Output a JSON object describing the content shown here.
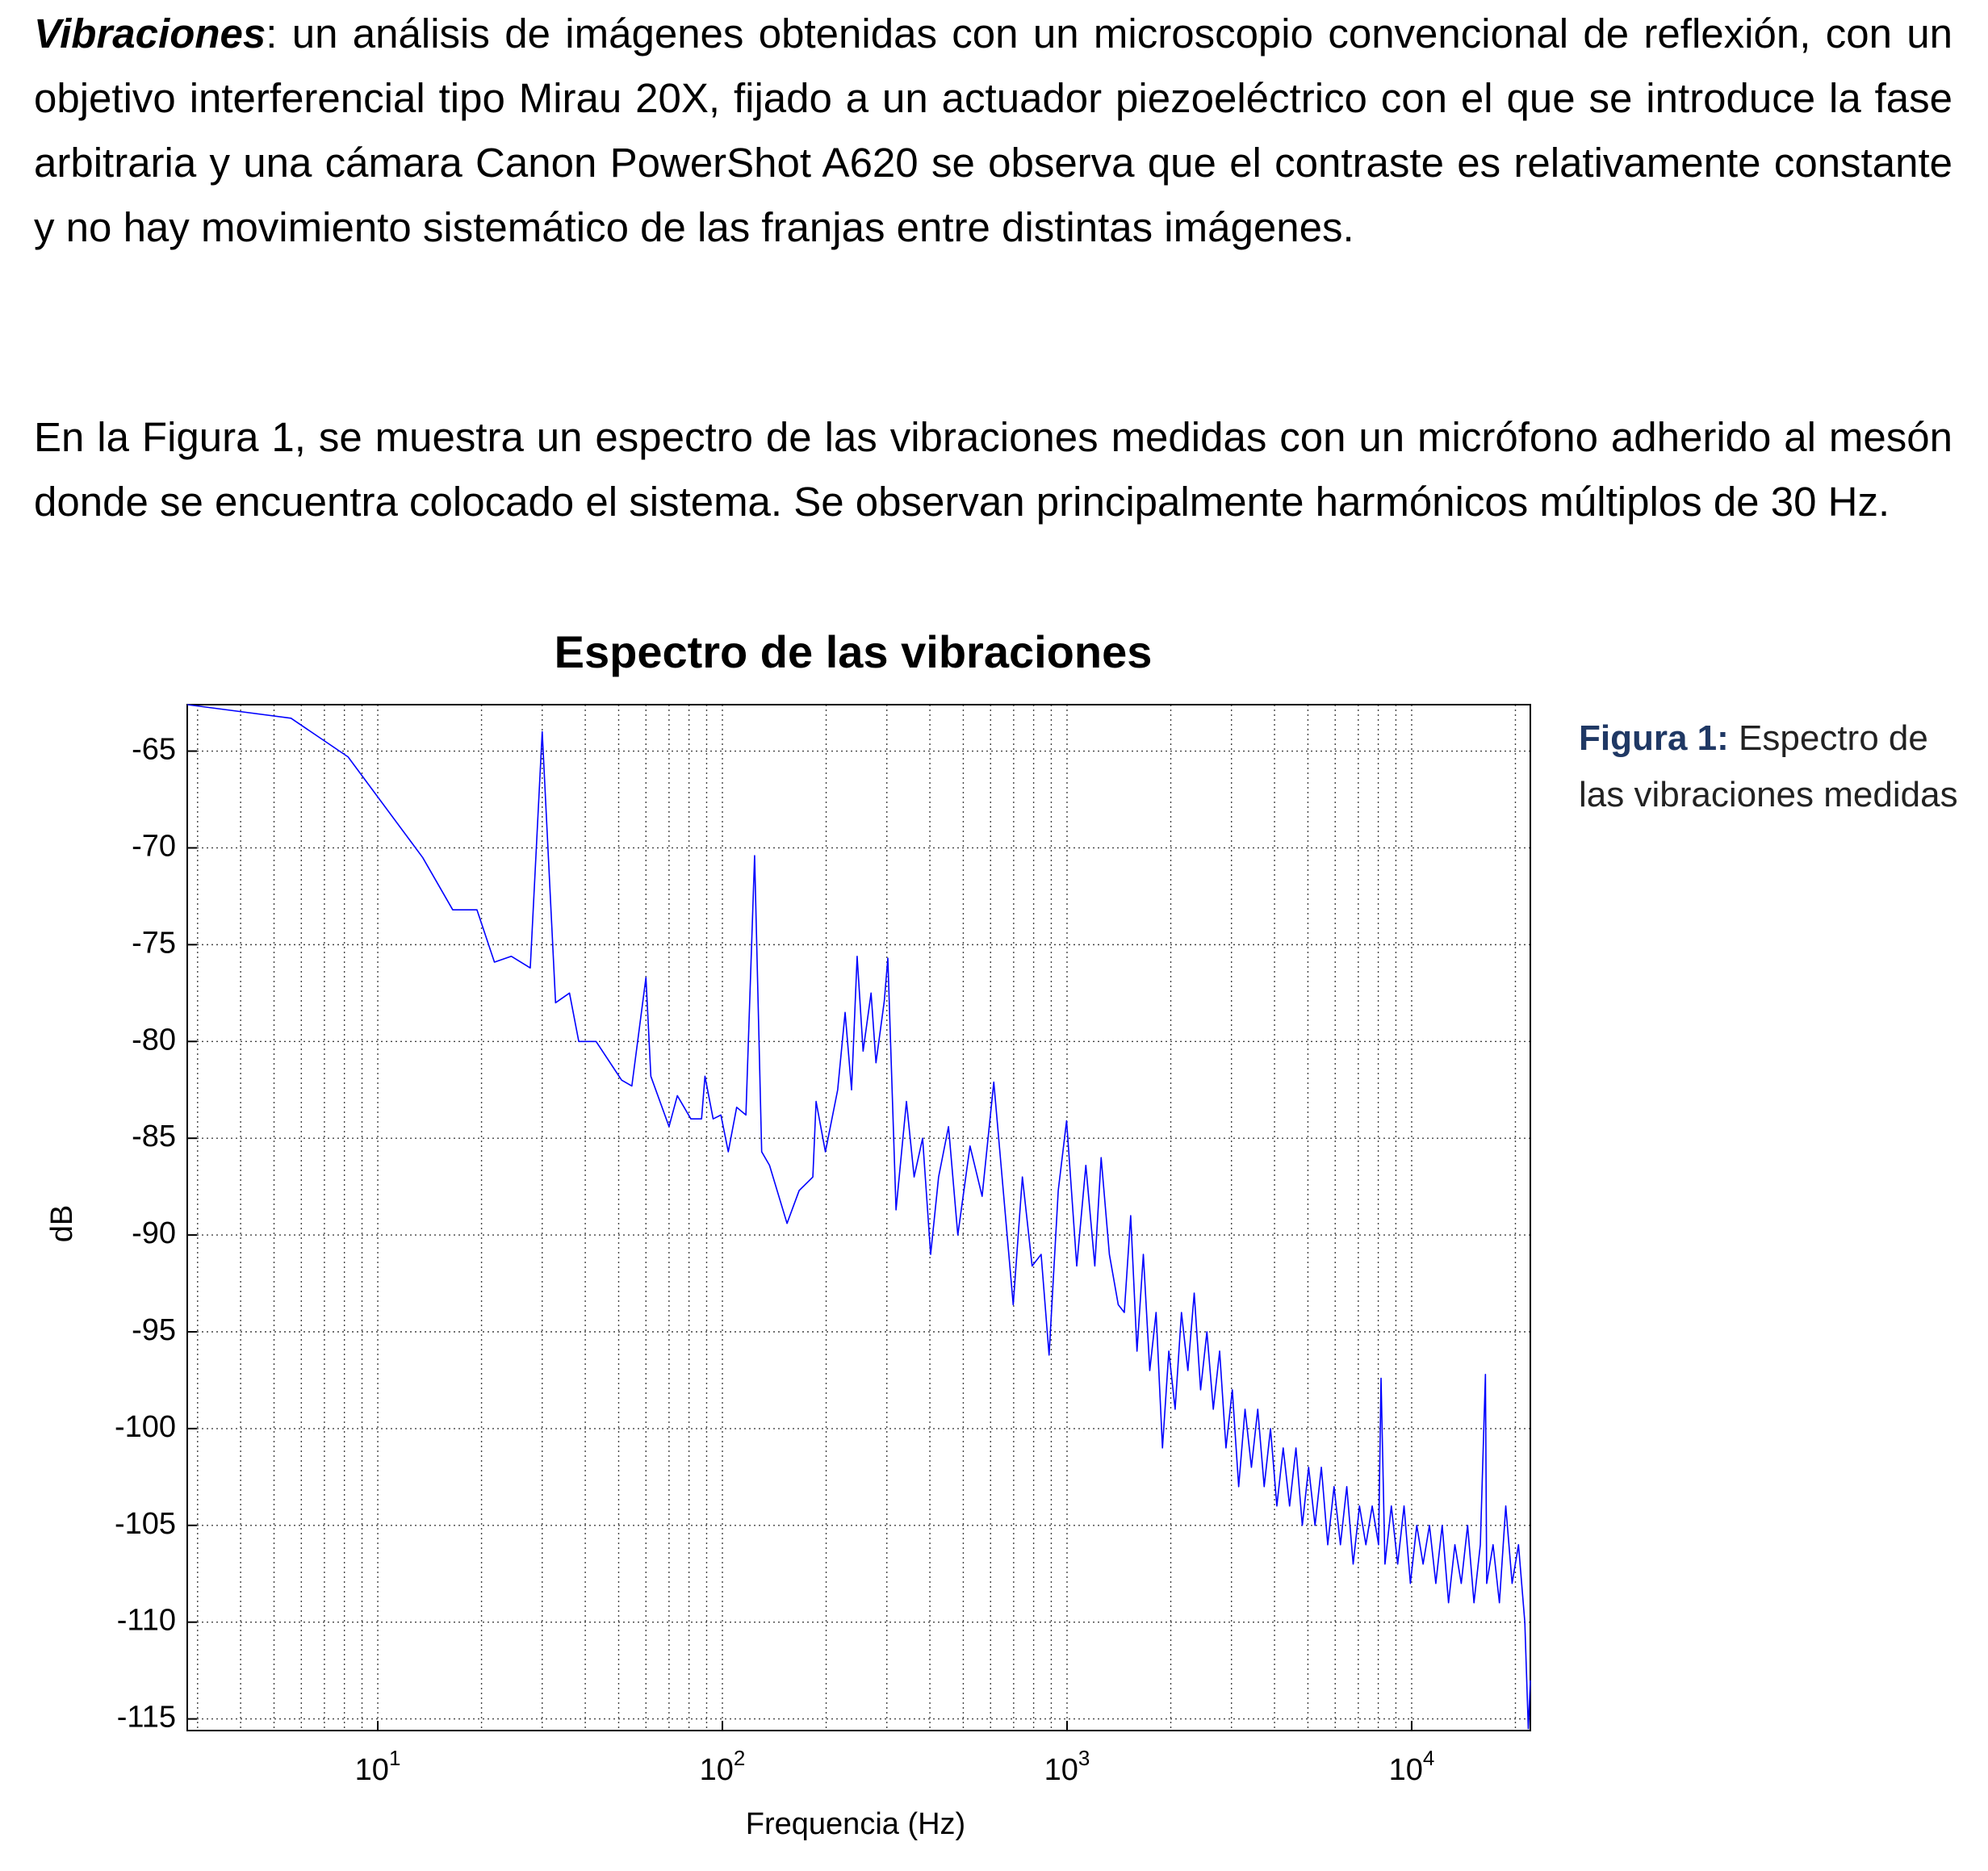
{
  "paragraphs": [
    {
      "lead": "Vibraciones",
      "text": ": un análisis de imágenes obtenidas con un microscopio convencional de reflexión, con un objetivo interferencial tipo Mirau 20X, fijado a un actuador piezoeléctrico con el que se introduce la fase arbitraria y una cámara Canon PowerShot A620 se observa que el contraste es relativamente constante y no hay movimiento sistemático de las franjas entre distintas imágenes."
    },
    {
      "text": "En la Figura 1, se muestra un espectro de las vibraciones medidas con un micrófono adherido al mesón donde se encuentra colocado el sistema. Se observan principalmente harmónicos múltiplos de 30 Hz."
    }
  ],
  "chart_data": {
    "type": "line",
    "title": "Espectro de las vibraciones",
    "xlabel": "Frequencia (Hz)",
    "ylabel": "dB",
    "xscale": "log",
    "grid": true,
    "color": "#0000ff",
    "xlim": [
      2.8,
      22100
    ],
    "ylim": [
      -115.6,
      -62.6
    ],
    "xticks": [
      {
        "value": 10,
        "label": "10",
        "exponent": "1"
      },
      {
        "value": 100,
        "label": "10",
        "exponent": "2"
      },
      {
        "value": 1000,
        "label": "10",
        "exponent": "3"
      },
      {
        "value": 10000,
        "label": "10",
        "exponent": "4"
      }
    ],
    "xminorticks": [
      3,
      4,
      5,
      6,
      7,
      8,
      9,
      20,
      30,
      40,
      50,
      60,
      70,
      80,
      90,
      200,
      300,
      400,
      500,
      600,
      700,
      800,
      900,
      2000,
      3000,
      4000,
      5000,
      6000,
      7000,
      8000,
      9000,
      20000
    ],
    "yticks": [
      -115,
      -110,
      -105,
      -100,
      -95,
      -90,
      -85,
      -80,
      -75,
      -70,
      -65
    ],
    "x": [
      2.8,
      5.6,
      8.2,
      13.5,
      16.5,
      19.4,
      21.8,
      24.4,
      27.7,
      30,
      32.8,
      36,
      38.3,
      43,
      51,
      54.6,
      60,
      62,
      70,
      74,
      81,
      87,
      89,
      94,
      99,
      104,
      110,
      117,
      124,
      130,
      137,
      154,
      167,
      183,
      187,
      199,
      216,
      227,
      237,
      246,
      256,
      270,
      279,
      295,
      302,
      319,
      342,
      360,
      381,
      402,
      424,
      453,
      482,
      523,
      567,
      613,
      653,
      698,
      742,
      792,
      841,
      887,
      943,
      997,
      1067,
      1134,
      1204,
      1256,
      1327,
      1408,
      1466,
      1530,
      1596,
      1665,
      1738,
      1813,
      1892,
      1974,
      2059,
      2148,
      2242,
      2339,
      2441,
      2546,
      2657,
      2772,
      2892,
      3017,
      3148,
      3285,
      3428,
      3576,
      3733,
      3894,
      4063,
      4239,
      4424,
      4616,
      4816,
      5024,
      5243,
      5470,
      5708,
      5954,
      6213,
      6482,
      6765,
      7057,
      7365,
      7683,
      8017,
      8150,
      8366,
      8730,
      9108,
      9504,
      9915,
      10346,
      10794,
      11263,
      11752,
      12262,
      12794,
      13349,
      13928,
      14533,
      15165,
      15822,
      16370,
      16510,
      17227,
      17972,
      18752,
      19563,
      20418,
      21299,
      21800,
      22100
    ],
    "values": [
      -62.6,
      -63.3,
      -65.3,
      -70.5,
      -73.2,
      -73.2,
      -75.9,
      -75.6,
      -76.2,
      -64,
      -78,
      -77.5,
      -80,
      -80,
      -82,
      -82.3,
      -76.7,
      -81.8,
      -84.4,
      -82.8,
      -84,
      -84,
      -81.8,
      -84,
      -83.8,
      -85.7,
      -83.4,
      -83.8,
      -70.4,
      -85.7,
      -86.4,
      -89.4,
      -87.7,
      -87,
      -83.1,
      -85.7,
      -82.5,
      -78.5,
      -82.5,
      -75.6,
      -80.5,
      -77.5,
      -81.1,
      -77.9,
      -75.7,
      -88.7,
      -83.1,
      -87,
      -85,
      -91,
      -87,
      -84.4,
      -90,
      -85.4,
      -88,
      -82.1,
      -87.7,
      -93.6,
      -87,
      -91.6,
      -91,
      -96.2,
      -87.7,
      -84.1,
      -91.6,
      -86.4,
      -91.6,
      -86,
      -91,
      -93.6,
      -94,
      -89,
      -96,
      -91,
      -97,
      -94,
      -101,
      -96,
      -99,
      -94,
      -97,
      -93,
      -98,
      -95,
      -99,
      -96,
      -101,
      -98,
      -103,
      -99,
      -102,
      -99,
      -103,
      -100,
      -104,
      -101,
      -104,
      -101,
      -105,
      -102,
      -105,
      -102,
      -106,
      -103,
      -106,
      -103,
      -107,
      -104,
      -106,
      -104,
      -106,
      -97.4,
      -107,
      -104,
      -107,
      -104,
      -108,
      -105,
      -107,
      -105,
      -108,
      -105,
      -109,
      -106,
      -108,
      -105,
      -109,
      -106,
      -97.2,
      -108,
      -106,
      -109,
      -104,
      -108,
      -106,
      -110,
      -115.5,
      -113
    ]
  },
  "caption": {
    "label": "Figura 1:",
    "text": "Espectro de las vibraciones medidas"
  }
}
